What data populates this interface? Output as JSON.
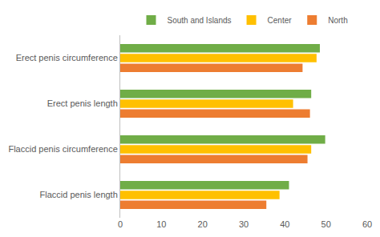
{
  "chart_data": {
    "type": "bar",
    "orientation": "horizontal",
    "categories": [
      "Erect penis circumference",
      "Erect penis length",
      "Flaccid penis circumference",
      "Flaccid penis length"
    ],
    "series": [
      {
        "name": "South and Islands",
        "color": "#70ad47",
        "values": [
          48.5,
          46.4,
          49.8,
          41.0
        ]
      },
      {
        "name": "Center",
        "color": "#ffc000",
        "values": [
          47.7,
          42.0,
          46.4,
          38.7
        ]
      },
      {
        "name": "North",
        "color": "#ed7d31",
        "values": [
          44.3,
          46.1,
          45.5,
          35.5
        ]
      }
    ],
    "xlim": [
      0,
      60
    ],
    "xticks": [
      0,
      10,
      20,
      30,
      40,
      50,
      60
    ],
    "grid": false,
    "legend": "top"
  }
}
